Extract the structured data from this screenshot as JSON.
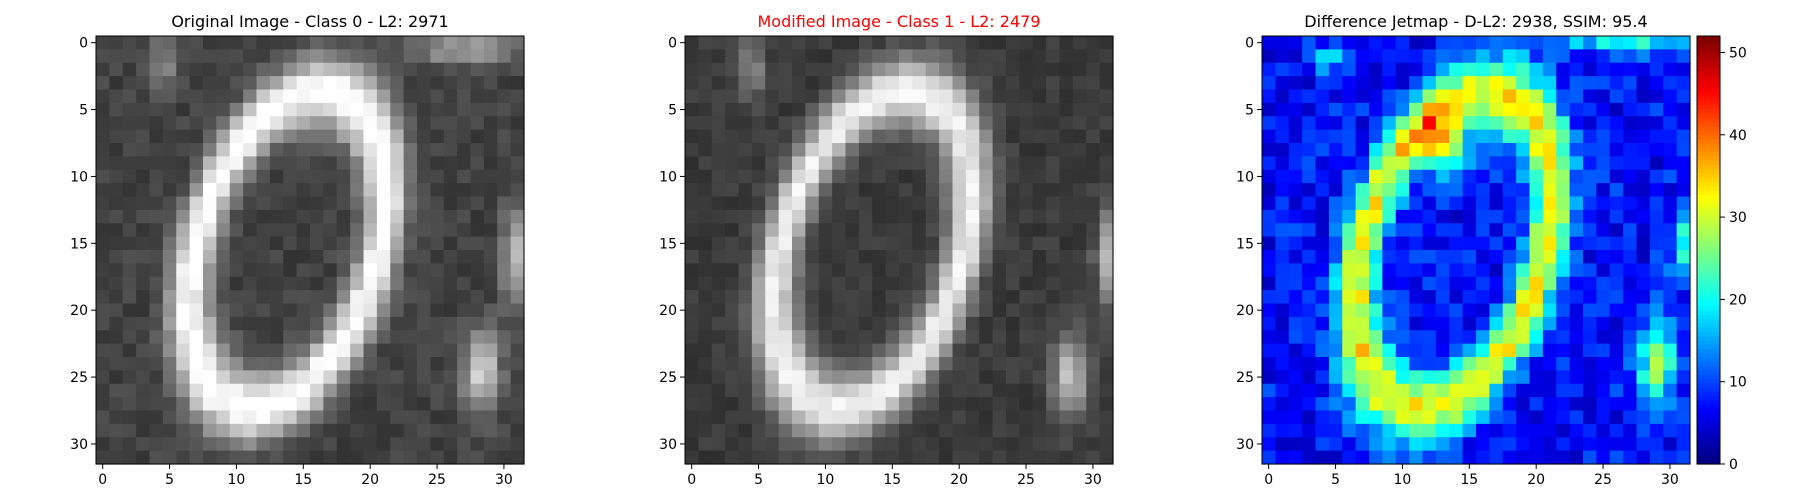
{
  "figure": {
    "panels": [
      {
        "title": "Original Image - Class 0 - L2: 2971",
        "title_color": "#000000"
      },
      {
        "title": "Modified Image - Class 1 - L2: 2479",
        "title_color": "#ff0000"
      },
      {
        "title": "Difference Jetmap - D-L2: 2938, SSIM: 95.4",
        "title_color": "#000000"
      }
    ]
  },
  "chart_data": [
    {
      "type": "heatmap",
      "title": "Original Image - Class 0 - L2: 2971",
      "colormap": "gray",
      "grid_size": [
        32,
        32
      ],
      "xticks": [
        0,
        5,
        10,
        15,
        20,
        25,
        30
      ],
      "yticks": [
        0,
        5,
        10,
        15,
        20,
        25,
        30
      ],
      "xlim": [
        -0.5,
        31.5
      ],
      "ylim": [
        31.5,
        -0.5
      ],
      "description_of_content": "grayscale digit zero as a tilted bright ellipse on dark background with bright blob lower right"
    },
    {
      "type": "heatmap",
      "title": "Modified Image - Class 1 - L2: 2479",
      "colormap": "gray",
      "grid_size": [
        32,
        32
      ],
      "xticks": [
        0,
        5,
        10,
        15,
        20,
        25,
        30
      ],
      "yticks": [
        0,
        5,
        10,
        15,
        20,
        25,
        30
      ],
      "xlim": [
        -0.5,
        31.5
      ],
      "ylim": [
        31.5,
        -0.5
      ]
    },
    {
      "type": "heatmap",
      "title": "Difference Jetmap - D-L2: 2938, SSIM: 95.4",
      "colormap": "jet",
      "grid_size": [
        32,
        32
      ],
      "xticks": [
        0,
        5,
        10,
        15,
        20,
        25,
        30
      ],
      "yticks": [
        0,
        5,
        10,
        15,
        20,
        25,
        30
      ],
      "xlim": [
        -0.5,
        31.5
      ],
      "ylim": [
        31.5,
        -0.5
      ],
      "colorbar": {
        "min": 0,
        "max": 52,
        "ticks": [
          0,
          10,
          20,
          30,
          40,
          50
        ]
      }
    }
  ]
}
